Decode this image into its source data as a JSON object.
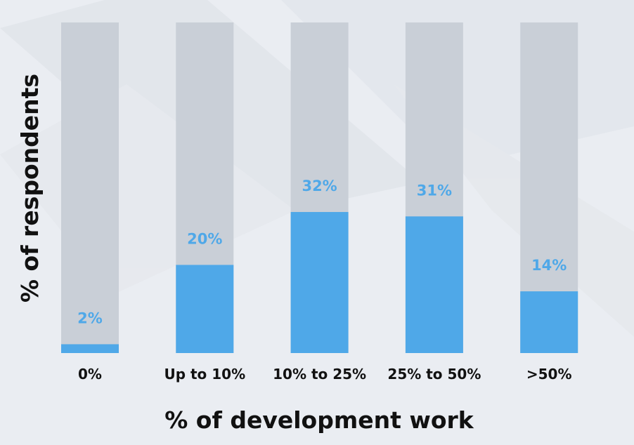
{
  "chart_data": {
    "type": "bar",
    "categories": [
      "0%",
      "Up to 10%",
      "10% to 25%",
      "25% to 50%",
      ">50%"
    ],
    "values": [
      2,
      20,
      32,
      31,
      14
    ],
    "data_labels": [
      "2%",
      "20%",
      "32%",
      "31%",
      "14%"
    ],
    "title": "",
    "xlabel": "% of development work",
    "ylabel": "% of respondents",
    "ylim": [
      0,
      75
    ],
    "grid": false,
    "legend": "none",
    "colors": {
      "bar": "#4fa8e8",
      "track": "#c9cfd7",
      "value_label": "#4fa8e8",
      "text": "#111111",
      "background": "#eaedf2"
    }
  }
}
